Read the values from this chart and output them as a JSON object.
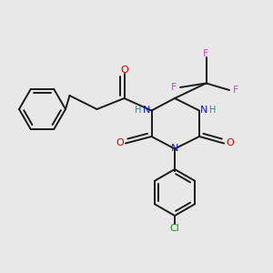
{
  "background_color": "#e8e8e8",
  "fig_size": [
    3.0,
    3.0
  ],
  "dpi": 100,
  "bond_color": "#1a1a1a",
  "N_color": "#1414e6",
  "O_color": "#cc0000",
  "F_color": "#cc44cc",
  "Cl_color": "#1a8c1a",
  "H_color": "#009999",
  "lw": 1.4,
  "xlim": [
    0.0,
    1.0
  ],
  "ylim": [
    0.0,
    1.0
  ]
}
